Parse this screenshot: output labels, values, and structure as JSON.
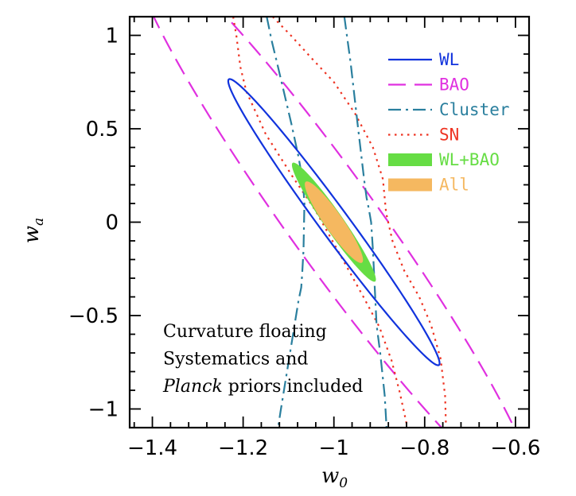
{
  "chart_data": {
    "type": "contour",
    "title": "",
    "xlabel": "w",
    "xlabel_subscript": "0",
    "ylabel": "w",
    "ylabel_subscript": "a",
    "xlim": [
      -1.45,
      -0.57
    ],
    "ylim": [
      -1.1,
      1.1
    ],
    "xticks": [
      -1.4,
      -1.2,
      -1.0,
      -0.8,
      -0.6
    ],
    "xtick_labels": [
      "−1.4",
      "−1.2",
      "−1",
      "−0.8",
      "−0.6"
    ],
    "yticks": [
      -1.0,
      -0.5,
      0.0,
      0.5,
      1.0
    ],
    "ytick_labels": [
      "−1",
      "−0.5",
      "0",
      "0.5",
      "1"
    ],
    "series": [
      {
        "name": "WL",
        "color": "#1133dd",
        "style": "solid",
        "kind": "ellipse",
        "ellipse": {
          "center": [
            -1.0,
            0.0
          ],
          "semi_major": 0.626,
          "semi_minor": 0.032,
          "angle_deg": -53.7
        }
      },
      {
        "name": "BAO",
        "color": "#e030e0",
        "style": "dashed",
        "kind": "ellipse",
        "ellipse": {
          "center": [
            -1.0,
            0.0
          ],
          "semi_major": 1.203,
          "semi_minor": 0.098,
          "angle_deg": -54.3
        }
      },
      {
        "name": "Cluster",
        "color": "#2a7f9e",
        "style": "dashdot",
        "kind": "lines",
        "lines": [
          [
            [
              -1.148,
              1.1
            ],
            [
              -1.137,
              0.97
            ],
            [
              -1.125,
              0.85
            ],
            [
              -1.094,
              0.53
            ],
            [
              -1.078,
              0.35
            ],
            [
              -1.068,
              0.21
            ],
            [
              -1.065,
              0.1
            ],
            [
              -1.067,
              -0.15
            ],
            [
              -1.07,
              -0.28
            ],
            [
              -1.072,
              -0.35
            ],
            [
              -1.078,
              -0.42
            ],
            [
              -1.098,
              -0.72
            ],
            [
              -1.118,
              -1.02
            ],
            [
              -1.123,
              -1.1
            ]
          ],
          [
            [
              -0.977,
              1.1
            ],
            [
              -0.963,
              0.85
            ],
            [
              -0.948,
              0.53
            ],
            [
              -0.933,
              0.22
            ],
            [
              -0.928,
              0.13
            ],
            [
              -0.923,
              0.07
            ],
            [
              -0.918,
              0.0
            ],
            [
              -0.914,
              -0.15
            ],
            [
              -0.911,
              -0.3
            ],
            [
              -0.908,
              -0.45
            ],
            [
              -0.906,
              -0.55
            ],
            [
              -0.898,
              -0.7
            ],
            [
              -0.888,
              -0.93
            ],
            [
              -0.884,
              -1.1
            ]
          ]
        ]
      },
      {
        "name": "SN",
        "color": "#ee3322",
        "style": "dotted",
        "kind": "lines",
        "lines": [
          [
            [
              -1.222,
              1.1
            ],
            [
              -1.215,
              1.0
            ],
            [
              -1.206,
              0.83
            ],
            [
              -1.193,
              0.7
            ],
            [
              -1.15,
              0.47
            ],
            [
              -1.09,
              0.24
            ],
            [
              -1.04,
              0.06
            ],
            [
              -0.985,
              -0.18
            ],
            [
              -0.935,
              -0.4
            ],
            [
              -0.9,
              -0.56
            ],
            [
              -0.873,
              -0.74
            ],
            [
              -0.855,
              -0.91
            ],
            [
              -0.838,
              -1.1
            ]
          ],
          [
            [
              -1.135,
              1.1
            ],
            [
              -1.095,
              1.0
            ],
            [
              -1.05,
              0.88
            ],
            [
              -1.0,
              0.75
            ],
            [
              -0.953,
              0.58
            ],
            [
              -0.914,
              0.4
            ],
            [
              -0.892,
              0.23
            ],
            [
              -0.885,
              0.05
            ],
            [
              -0.871,
              -0.1
            ],
            [
              -0.845,
              -0.26
            ],
            [
              -0.812,
              -0.4
            ],
            [
              -0.786,
              -0.55
            ],
            [
              -0.765,
              -0.73
            ],
            [
              -0.755,
              -0.93
            ],
            [
              -0.753,
              -1.1
            ]
          ]
        ]
      },
      {
        "name": "WL+BAO",
        "color": "#66dd44",
        "style": "filled",
        "kind": "ellipse",
        "ellipse": {
          "center": [
            -1.0,
            0.0
          ],
          "semi_major": 0.261,
          "semi_minor": 0.021,
          "angle_deg": -55.2
        }
      },
      {
        "name": "All",
        "color": "#f5b860",
        "style": "filled",
        "kind": "ellipse",
        "ellipse": {
          "center": [
            -1.0,
            0.0
          ],
          "semi_major": 0.178,
          "semi_minor": 0.02,
          "angle_deg": -55.2
        }
      }
    ],
    "legend": {
      "position": "top-right",
      "entries": [
        "WL",
        "BAO",
        "Cluster",
        "SN",
        "WL+BAO",
        "All"
      ]
    },
    "annotations": [
      {
        "segments": [
          {
            "text": "Curvature floating",
            "italic": false
          }
        ]
      },
      {
        "segments": [
          {
            "text": "Systematics and",
            "italic": false
          }
        ]
      },
      {
        "segments": [
          {
            "text": "Planck",
            "italic": true
          },
          {
            "text": " priors included",
            "italic": false
          }
        ]
      }
    ]
  }
}
